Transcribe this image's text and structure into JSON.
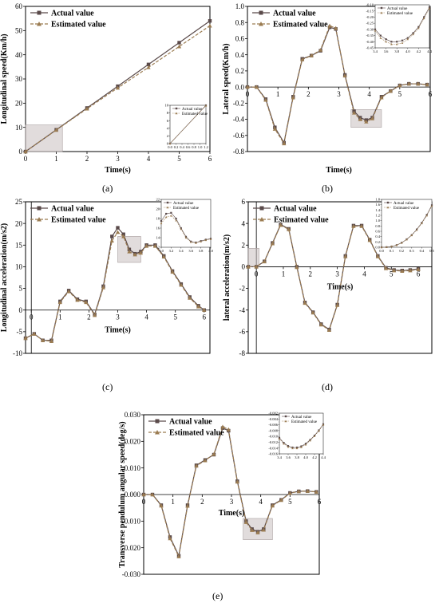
{
  "panel_labels": [
    "(a)",
    "(b)",
    "(c)",
    "(d)",
    "(e)"
  ],
  "colors": {
    "actual": "#5a4a4a",
    "estimated": "#9b7c52",
    "axis": "#000000",
    "highlight": "#c9c0c0"
  },
  "chart_data": [
    {
      "id": "a",
      "type": "line",
      "xlabel": "Time(s)",
      "ylabel": "Longitudinal speed(Km/h)",
      "xlim": [
        0,
        6
      ],
      "ylim": [
        0,
        60
      ],
      "xticks": [
        0,
        1,
        2,
        3,
        4,
        5,
        6
      ],
      "yticks": [
        0,
        10,
        20,
        30,
        40,
        50,
        60
      ],
      "legend": [
        "Actual value",
        "Estimated value"
      ],
      "legend_position": "top-left",
      "series": [
        {
          "name": "Actual value",
          "x": [
            0,
            1,
            2,
            3,
            4,
            5,
            6
          ],
          "y": [
            0,
            9,
            18,
            27,
            36,
            45,
            54
          ]
        },
        {
          "name": "Estimated value",
          "x": [
            0,
            1,
            2,
            3,
            4,
            5,
            6
          ],
          "y": [
            0,
            8.9,
            17.7,
            26.3,
            34.8,
            43.4,
            52
          ]
        }
      ],
      "highlight": {
        "x": [
          0,
          1.2
        ],
        "y": [
          0,
          11
        ]
      },
      "inset": {
        "xlim": [
          0,
          1.2
        ],
        "ylim": [
          0,
          10
        ],
        "xticks": [
          0.0,
          0.2,
          0.4,
          0.6,
          0.8,
          1.0,
          1.2
        ],
        "yticks": [
          0,
          2,
          4,
          6,
          8,
          10
        ],
        "legend": [
          "Actual value",
          "Estimated value"
        ],
        "series": [
          {
            "x": [
              0,
              1.2
            ],
            "y": [
              0,
              10
            ]
          },
          {
            "x": [
              0,
              1.2
            ],
            "y": [
              0,
              9.9
            ]
          }
        ]
      }
    },
    {
      "id": "b",
      "type": "line",
      "xlabel": "Time(s)",
      "ylabel": "Lateral speed(Km/h)",
      "xlim": [
        0,
        6
      ],
      "ylim": [
        -0.8,
        1.0
      ],
      "xticks": [
        0,
        1,
        2,
        3,
        4,
        5,
        6
      ],
      "yticks": [
        -0.8,
        -0.6,
        -0.4,
        -0.2,
        0.0,
        0.2,
        0.4,
        0.6,
        0.8,
        1.0
      ],
      "legend": [
        "Actual value",
        "Estimated value"
      ],
      "legend_position": "top-left",
      "series": [
        {
          "name": "Actual value",
          "x": [
            0,
            0.3,
            0.6,
            0.9,
            1.2,
            1.5,
            1.8,
            2.1,
            2.4,
            2.7,
            2.9,
            3.2,
            3.5,
            3.7,
            3.9,
            4.1,
            4.4,
            4.7,
            5.0,
            5.3,
            5.6,
            5.9
          ],
          "y": [
            0,
            0,
            -0.15,
            -0.5,
            -0.69,
            -0.12,
            0.35,
            0.39,
            0.45,
            0.74,
            0.72,
            0.15,
            -0.3,
            -0.38,
            -0.41,
            -0.38,
            -0.12,
            -0.05,
            0.02,
            0.04,
            0.04,
            0.03
          ]
        },
        {
          "name": "Estimated value",
          "x": [
            0,
            0.3,
            0.6,
            0.9,
            1.2,
            1.5,
            1.8,
            2.1,
            2.4,
            2.7,
            2.9,
            3.2,
            3.5,
            3.7,
            3.9,
            4.1,
            4.4,
            4.7,
            5.0,
            5.3,
            5.6,
            5.9
          ],
          "y": [
            0,
            0,
            -0.16,
            -0.52,
            -0.7,
            -0.13,
            0.34,
            0.39,
            0.46,
            0.76,
            0.73,
            0.14,
            -0.32,
            -0.4,
            -0.43,
            -0.39,
            -0.13,
            -0.05,
            0.02,
            0.04,
            0.04,
            0.03
          ]
        }
      ],
      "highlight": {
        "x": [
          3.4,
          4.4
        ],
        "y": [
          -0.5,
          -0.28
        ]
      },
      "inset": {
        "xlim": [
          3.4,
          4.4
        ],
        "ylim": [
          -0.45,
          -0.1
        ],
        "xticks": [
          3.4,
          3.6,
          3.8,
          4.0,
          4.2,
          4.4
        ],
        "yticks": [
          -0.45,
          -0.4,
          -0.35,
          -0.3,
          -0.25,
          -0.2,
          -0.15,
          -0.1
        ],
        "legend": [
          "Actual value",
          "Estimated value"
        ],
        "series": [
          {
            "x": [
              3.4,
              3.5,
              3.6,
              3.7,
              3.8,
              3.9,
              4.0,
              4.1,
              4.2,
              4.3,
              4.4
            ],
            "y": [
              -0.3,
              -0.35,
              -0.38,
              -0.4,
              -0.4,
              -0.39,
              -0.37,
              -0.33,
              -0.28,
              -0.2,
              -0.12
            ]
          },
          {
            "x": [
              3.4,
              3.5,
              3.6,
              3.7,
              3.8,
              3.9,
              4.0,
              4.1,
              4.2,
              4.3,
              4.4
            ],
            "y": [
              -0.31,
              -0.37,
              -0.4,
              -0.42,
              -0.42,
              -0.41,
              -0.38,
              -0.34,
              -0.29,
              -0.21,
              -0.13
            ]
          }
        ]
      }
    },
    {
      "id": "c",
      "type": "line",
      "xlabel": "Time(s)",
      "ylabel": "Longitudinal acceleration(m/s2)",
      "xlim": [
        -0.2,
        6.2
      ],
      "ylim": [
        -10,
        25
      ],
      "xticks": [
        0,
        1,
        2,
        3,
        4,
        5,
        6
      ],
      "yticks": [
        -10,
        -5,
        0,
        5,
        10,
        15,
        20,
        25
      ],
      "legend": [
        "Actual value",
        "Estimated value"
      ],
      "legend_position": "top-left",
      "series": [
        {
          "name": "Actual value",
          "x": [
            -0.2,
            0.1,
            0.4,
            0.7,
            1.0,
            1.3,
            1.6,
            1.9,
            2.2,
            2.5,
            2.8,
            3.0,
            3.2,
            3.4,
            3.6,
            3.8,
            4.0,
            4.3,
            4.6,
            4.9,
            5.2,
            5.5,
            5.8,
            6.0
          ],
          "y": [
            -6.5,
            -5.5,
            -7,
            -7,
            2,
            4.5,
            2.5,
            2,
            -1,
            5.5,
            17,
            19,
            17.5,
            14,
            13,
            13.5,
            15,
            15,
            12.5,
            9,
            6,
            3,
            1,
            0
          ]
        },
        {
          "name": "Estimated value",
          "x": [
            -0.2,
            0.1,
            0.4,
            0.7,
            1.0,
            1.3,
            1.6,
            1.9,
            2.2,
            2.5,
            2.8,
            3.0,
            3.2,
            3.4,
            3.6,
            3.8,
            4.0,
            4.3,
            4.6,
            4.9,
            5.2,
            5.5,
            5.8,
            6.0
          ],
          "y": [
            -6.5,
            -5.5,
            -7,
            -7.2,
            1.8,
            4.3,
            2.3,
            1.8,
            -1.2,
            5.2,
            16,
            18,
            17,
            13.5,
            12.8,
            13.2,
            14.8,
            14.8,
            12.3,
            8.8,
            5.8,
            2.8,
            0.8,
            0
          ]
        }
      ],
      "highlight": {
        "x": [
          3.0,
          3.8
        ],
        "y": [
          11,
          17
        ]
      },
      "inset": {
        "xlim": [
          3.0,
          4.0
        ],
        "ylim": [
          12,
          22
        ],
        "xticks": [
          3.0,
          3.2,
          3.4,
          3.6,
          3.8,
          4.0
        ],
        "yticks": [
          12,
          14,
          16,
          18,
          20,
          22
        ],
        "legend": [
          "Actual value",
          "Estimated value"
        ],
        "series": [
          {
            "x": [
              3.0,
              3.1,
              3.2,
              3.3,
              3.4,
              3.5,
              3.6,
              3.7,
              3.8,
              3.9,
              4.0
            ],
            "y": [
              17.5,
              19,
              19.2,
              18,
              16,
              14.2,
              13.2,
              13,
              13.3,
              13.6,
              13.8
            ]
          },
          {
            "x": [
              3.0,
              3.1,
              3.2,
              3.3,
              3.4,
              3.5,
              3.6,
              3.7,
              3.8,
              3.9,
              4.0
            ],
            "y": [
              17,
              18.3,
              18.6,
              17.6,
              15.8,
              14,
              13.1,
              12.9,
              13.2,
              13.5,
              13.7
            ]
          }
        ]
      }
    },
    {
      "id": "d",
      "type": "line",
      "xlabel": "Time(s)",
      "ylabel": "lateral acceleration(m/s2)",
      "xlim": [
        -0.3,
        6.5
      ],
      "ylim": [
        -8,
        6
      ],
      "xticks": [
        0,
        1,
        2,
        3,
        4,
        5,
        6
      ],
      "yticks": [
        -8,
        -6,
        -4,
        -2,
        0,
        2,
        4,
        6
      ],
      "legend": [
        "Actual value",
        "Estimated value"
      ],
      "legend_position": "top-left",
      "series": [
        {
          "name": "Actual value",
          "x": [
            -0.3,
            0,
            0.3,
            0.6,
            0.9,
            1.2,
            1.5,
            1.8,
            2.1,
            2.4,
            2.7,
            3.0,
            3.3,
            3.6,
            3.9,
            4.2,
            4.5,
            4.8,
            5.1,
            5.4,
            5.7,
            6.0
          ],
          "y": [
            0,
            0,
            0.5,
            2.2,
            3.9,
            3.5,
            0,
            -3.3,
            -4.2,
            -5.3,
            -5.8,
            -3.5,
            1,
            3.8,
            3.8,
            2.5,
            1,
            -0.1,
            -0.3,
            -0.35,
            -0.3,
            -0.2
          ]
        },
        {
          "name": "Estimated value",
          "x": [
            -0.3,
            0,
            0.3,
            0.6,
            0.9,
            1.2,
            1.5,
            1.8,
            2.1,
            2.4,
            2.7,
            3.0,
            3.3,
            3.6,
            3.9,
            4.2,
            4.5,
            4.8,
            5.1,
            5.4,
            5.7,
            6.0
          ],
          "y": [
            0,
            0,
            0.48,
            2.15,
            3.85,
            3.45,
            -0.05,
            -3.35,
            -4.25,
            -5.35,
            -5.85,
            -3.55,
            0.95,
            3.75,
            3.75,
            2.45,
            0.95,
            -0.15,
            -0.35,
            -0.4,
            -0.35,
            -0.25
          ]
        }
      ],
      "highlight": {
        "x": [
          -0.3,
          0.1
        ],
        "y": [
          0,
          1.7
        ]
      },
      "inset": {
        "xlim": [
          0,
          0.5
        ],
        "ylim": [
          0,
          1.8
        ],
        "xticks": [
          0.0,
          0.1,
          0.2,
          0.3,
          0.4,
          0.5
        ],
        "yticks": [
          0,
          0.2,
          0.4,
          0.6,
          0.8,
          1.0,
          1.2,
          1.4,
          1.6,
          1.8
        ],
        "legend": [
          "Actual value",
          "Estimated value"
        ],
        "series": [
          {
            "x": [
              0,
              0.05,
              0.1,
              0.15,
              0.2,
              0.25,
              0.3,
              0.35,
              0.4,
              0.45,
              0.5
            ],
            "y": [
              0,
              0.005,
              0.03,
              0.08,
              0.17,
              0.3,
              0.46,
              0.67,
              0.92,
              1.22,
              1.58
            ]
          },
          {
            "x": [
              0,
              0.05,
              0.1,
              0.15,
              0.2,
              0.25,
              0.3,
              0.35,
              0.4,
              0.45,
              0.5
            ],
            "y": [
              0,
              0.005,
              0.028,
              0.078,
              0.165,
              0.29,
              0.45,
              0.65,
              0.9,
              1.19,
              1.55
            ]
          }
        ]
      }
    },
    {
      "id": "e",
      "type": "line",
      "xlabel": "Time(s)",
      "ylabel": "Transverse pendulum angular speed(deg/s)",
      "xlim": [
        0,
        6
      ],
      "ylim": [
        -0.03,
        0.03
      ],
      "xticks": [
        0,
        1,
        2,
        3,
        4,
        5,
        6
      ],
      "yticks": [
        -0.03,
        -0.02,
        -0.01,
        0.0,
        0.01,
        0.02,
        0.03
      ],
      "legend": [
        "Actual value",
        "Estimated value"
      ],
      "legend_position": "top-left",
      "series": [
        {
          "name": "Actual value",
          "x": [
            0,
            0.3,
            0.6,
            0.9,
            1.2,
            1.5,
            1.8,
            2.1,
            2.4,
            2.7,
            2.9,
            3.2,
            3.5,
            3.7,
            3.9,
            4.1,
            4.4,
            4.7,
            5.0,
            5.3,
            5.6,
            5.9
          ],
          "y": [
            0,
            0,
            -0.004,
            -0.016,
            -0.023,
            -0.004,
            0.011,
            0.013,
            0.015,
            0.025,
            0.024,
            0.005,
            -0.01,
            -0.013,
            -0.014,
            -0.013,
            -0.004,
            -0.002,
            0.0006,
            0.0012,
            0.0013,
            0.001
          ]
        },
        {
          "name": "Estimated value",
          "x": [
            0,
            0.3,
            0.6,
            0.9,
            1.2,
            1.5,
            1.8,
            2.1,
            2.4,
            2.7,
            2.9,
            3.2,
            3.5,
            3.7,
            3.9,
            4.1,
            4.4,
            4.7,
            5.0,
            5.3,
            5.6,
            5.9
          ],
          "y": [
            0,
            0,
            -0.0042,
            -0.0165,
            -0.0233,
            -0.0043,
            0.0108,
            0.0128,
            0.0152,
            0.0255,
            0.0245,
            0.0048,
            -0.0104,
            -0.0134,
            -0.0143,
            -0.0133,
            -0.0042,
            -0.0021,
            0.0005,
            0.0012,
            0.0013,
            0.001
          ]
        }
      ],
      "highlight": {
        "x": [
          3.4,
          4.4
        ],
        "y": [
          -0.017,
          -0.009
        ]
      },
      "inset": {
        "xlim": [
          3.4,
          4.4
        ],
        "ylim": [
          -0.016,
          -0.002
        ],
        "xticks": [
          3.4,
          3.6,
          3.8,
          4.0,
          4.2,
          4.4
        ],
        "yticks": [
          -0.016,
          -0.014,
          -0.012,
          -0.01,
          -0.008,
          -0.006,
          -0.004,
          -0.002
        ],
        "legend": [
          "Actual value",
          "Estimated value"
        ],
        "series": [
          {
            "x": [
              3.4,
              3.5,
              3.6,
              3.7,
              3.8,
              3.9,
              4.0,
              4.1,
              4.2,
              4.3,
              4.4
            ],
            "y": [
              -0.0105,
              -0.0122,
              -0.0133,
              -0.0138,
              -0.0138,
              -0.0134,
              -0.0125,
              -0.0112,
              -0.0097,
              -0.0079,
              -0.0058
            ]
          },
          {
            "x": [
              3.4,
              3.5,
              3.6,
              3.7,
              3.8,
              3.9,
              4.0,
              4.1,
              4.2,
              4.3,
              4.4
            ],
            "y": [
              -0.0108,
              -0.0125,
              -0.0136,
              -0.0141,
              -0.0141,
              -0.0137,
              -0.0128,
              -0.0114,
              -0.0099,
              -0.0081,
              -0.006
            ]
          }
        ]
      }
    }
  ]
}
